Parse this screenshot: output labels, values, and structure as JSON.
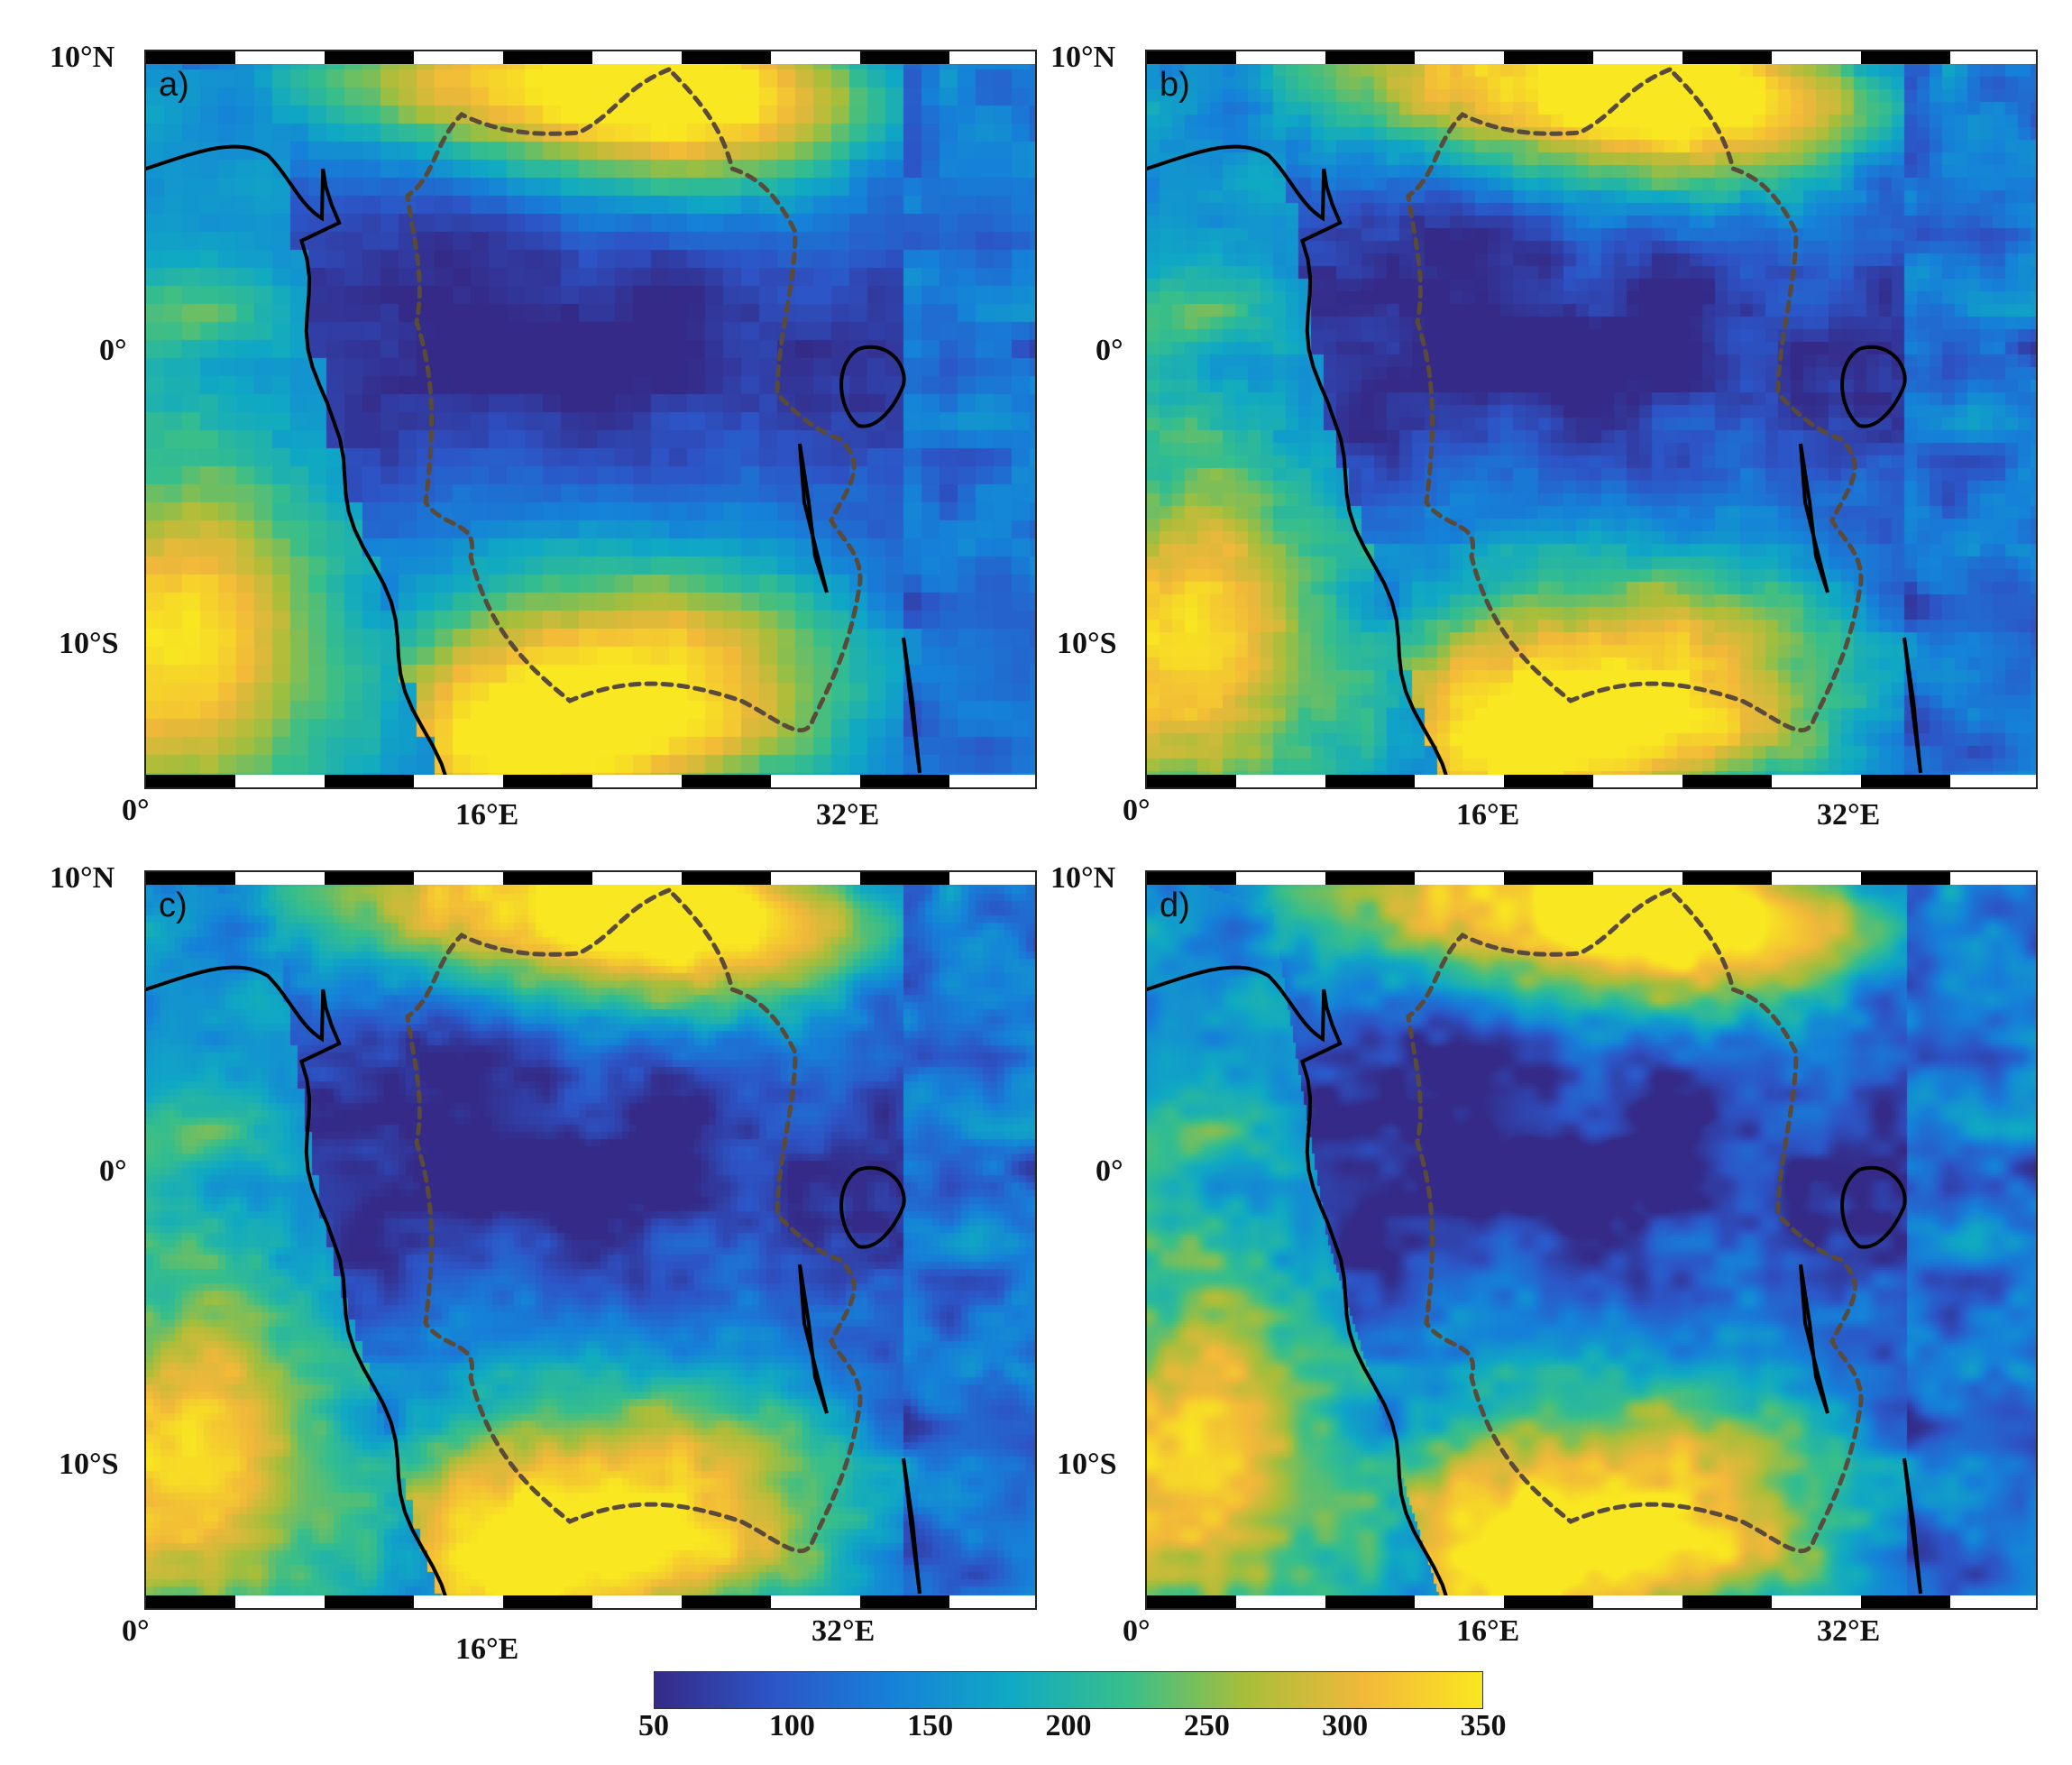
{
  "panels": [
    {
      "label": "a)",
      "variant": "coarse"
    },
    {
      "label": "b)",
      "variant": "medium"
    },
    {
      "label": "c)",
      "variant": "fine"
    },
    {
      "label": "d)",
      "variant": "finest"
    }
  ],
  "axes": {
    "lat_labels": [
      "10°N",
      "0°",
      "10°S"
    ],
    "lon_labels": [
      "0°",
      "16°E",
      "32°E"
    ]
  },
  "colorbar": {
    "ticks": [
      "50",
      "100",
      "150",
      "200",
      "250",
      "300",
      "350"
    ],
    "min": 50,
    "max": 350,
    "colormap": [
      "#352a87",
      "#2d55c7",
      "#1681d9",
      "#10a9c4",
      "#38bf8a",
      "#a8be3a",
      "#f2b83a",
      "#f9e721"
    ]
  },
  "colors": {
    "coastline": "#000000",
    "basin_outline": "#5a4a3a"
  }
}
